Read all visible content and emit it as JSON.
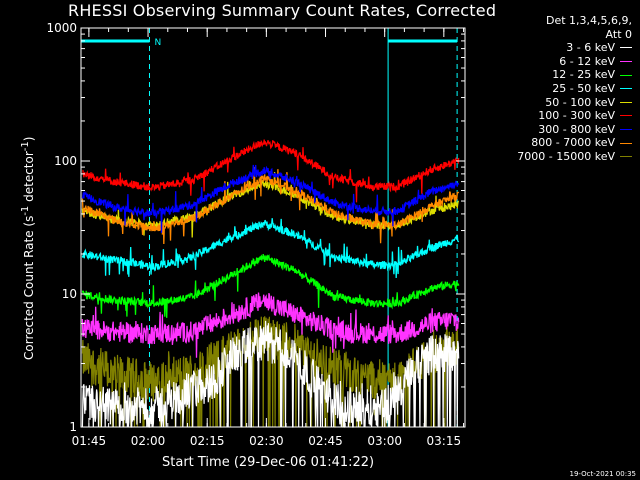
{
  "chart_data": {
    "type": "line",
    "title": "RHESSI Observing Summary Count Rates, Corrected",
    "xlabel": "Start Time (29-Dec-06 01:41:22)",
    "ylabel": "Corrected Count Rate (s",
    "ylabel_sup1": "-1",
    "ylabel_mid": " detector",
    "ylabel_sup2": "-1",
    "ylabel_end": ")",
    "y_scale": "log",
    "ylim": [
      1,
      1000
    ],
    "ytick_labels": [
      "1",
      "10",
      "100",
      "1000"
    ],
    "xlim_minutes": [
      1.6333,
      99.0
    ],
    "xtick_labels": [
      "01:45",
      "02:00",
      "02:15",
      "02:30",
      "02:45",
      "03:00",
      "03:15"
    ],
    "xtick_minutes": [
      3.6333,
      18.6333,
      33.6333,
      48.6333,
      63.6333,
      78.6333,
      93.6333
    ],
    "legend_header": [
      "Det 1,3,4,5,6,9,",
      "Att 0"
    ],
    "legend_position": "right, outside plot",
    "night_marker_label": "N",
    "night_intervals_minutes": [
      [
        0,
        19
      ],
      [
        79.5,
        97
      ]
    ],
    "footer": "19-Oct-2021 00:35",
    "series": [
      {
        "name": "3 - 6 keV",
        "color": "#ffffff",
        "points": [
          [
            2,
            1.5
          ],
          [
            10,
            1.4
          ],
          [
            20,
            1.4
          ],
          [
            35,
            2.2
          ],
          [
            40,
            3.4
          ],
          [
            48,
            4.5
          ],
          [
            55,
            3.6
          ],
          [
            62,
            2.0
          ],
          [
            70,
            1.4
          ],
          [
            80,
            1.5
          ],
          [
            85,
            2.4
          ],
          [
            90,
            3.5
          ],
          [
            97,
            3.8
          ]
        ]
      },
      {
        "name": "6 - 12 keV",
        "color": "#ff33ff",
        "points": [
          [
            2,
            5.5
          ],
          [
            10,
            5.2
          ],
          [
            20,
            5.0
          ],
          [
            30,
            5.2
          ],
          [
            40,
            7.0
          ],
          [
            48,
            9.0
          ],
          [
            56,
            7.0
          ],
          [
            66,
            5.3
          ],
          [
            76,
            5.0
          ],
          [
            82,
            5.0
          ],
          [
            90,
            6.0
          ],
          [
            97,
            6.5
          ]
        ]
      },
      {
        "name": "12 - 25 keV",
        "color": "#00ff00",
        "points": [
          [
            2,
            10
          ],
          [
            10,
            9
          ],
          [
            20,
            8.5
          ],
          [
            30,
            9.5
          ],
          [
            40,
            14
          ],
          [
            48,
            19
          ],
          [
            56,
            15
          ],
          [
            66,
            9.5
          ],
          [
            76,
            8.5
          ],
          [
            82,
            8.5
          ],
          [
            90,
            11
          ],
          [
            97,
            12
          ]
        ]
      },
      {
        "name": "25 - 50 keV",
        "color": "#00ffff",
        "points": [
          [
            2,
            20
          ],
          [
            10,
            18
          ],
          [
            20,
            16
          ],
          [
            30,
            19
          ],
          [
            40,
            27
          ],
          [
            48,
            34
          ],
          [
            56,
            28
          ],
          [
            66,
            19
          ],
          [
            76,
            16.5
          ],
          [
            82,
            16.5
          ],
          [
            90,
            22
          ],
          [
            97,
            26
          ]
        ]
      },
      {
        "name": "50 - 100 keV",
        "color": "#dddd00",
        "points": [
          [
            2,
            42
          ],
          [
            10,
            36
          ],
          [
            20,
            33
          ],
          [
            30,
            38
          ],
          [
            40,
            55
          ],
          [
            48,
            68
          ],
          [
            56,
            56
          ],
          [
            66,
            38
          ],
          [
            76,
            33
          ],
          [
            82,
            33
          ],
          [
            90,
            42
          ],
          [
            97,
            47
          ]
        ]
      },
      {
        "name": "100 - 300 keV",
        "color": "#ff0000",
        "points": [
          [
            2,
            80
          ],
          [
            10,
            70
          ],
          [
            20,
            63
          ],
          [
            30,
            72
          ],
          [
            40,
            105
          ],
          [
            48,
            140
          ],
          [
            56,
            115
          ],
          [
            66,
            75
          ],
          [
            76,
            64
          ],
          [
            82,
            64
          ],
          [
            90,
            85
          ],
          [
            97,
            100
          ]
        ]
      },
      {
        "name": "300 - 800 keV",
        "color": "#0000ff",
        "points": [
          [
            2,
            55
          ],
          [
            10,
            45
          ],
          [
            20,
            40
          ],
          [
            30,
            47
          ],
          [
            40,
            68
          ],
          [
            48,
            85
          ],
          [
            56,
            70
          ],
          [
            66,
            48
          ],
          [
            76,
            42
          ],
          [
            82,
            42
          ],
          [
            90,
            58
          ],
          [
            97,
            68
          ]
        ]
      },
      {
        "name": "800 - 7000 keV",
        "color": "#ff8800",
        "points": [
          [
            2,
            45
          ],
          [
            10,
            36
          ],
          [
            20,
            31
          ],
          [
            30,
            37
          ],
          [
            40,
            55
          ],
          [
            48,
            75
          ],
          [
            56,
            60
          ],
          [
            66,
            40
          ],
          [
            76,
            33
          ],
          [
            82,
            33
          ],
          [
            90,
            45
          ],
          [
            97,
            55
          ]
        ]
      },
      {
        "name": "7000 - 15000 keV",
        "color": "#808000",
        "points": [
          [
            2,
            3.2
          ],
          [
            10,
            2.5
          ],
          [
            20,
            2.2
          ],
          [
            30,
            2.6
          ],
          [
            40,
            3.8
          ],
          [
            48,
            5.0
          ],
          [
            56,
            4.2
          ],
          [
            66,
            2.8
          ],
          [
            76,
            2.3
          ],
          [
            82,
            2.3
          ],
          [
            90,
            3.4
          ],
          [
            97,
            4.0
          ]
        ]
      }
    ]
  }
}
